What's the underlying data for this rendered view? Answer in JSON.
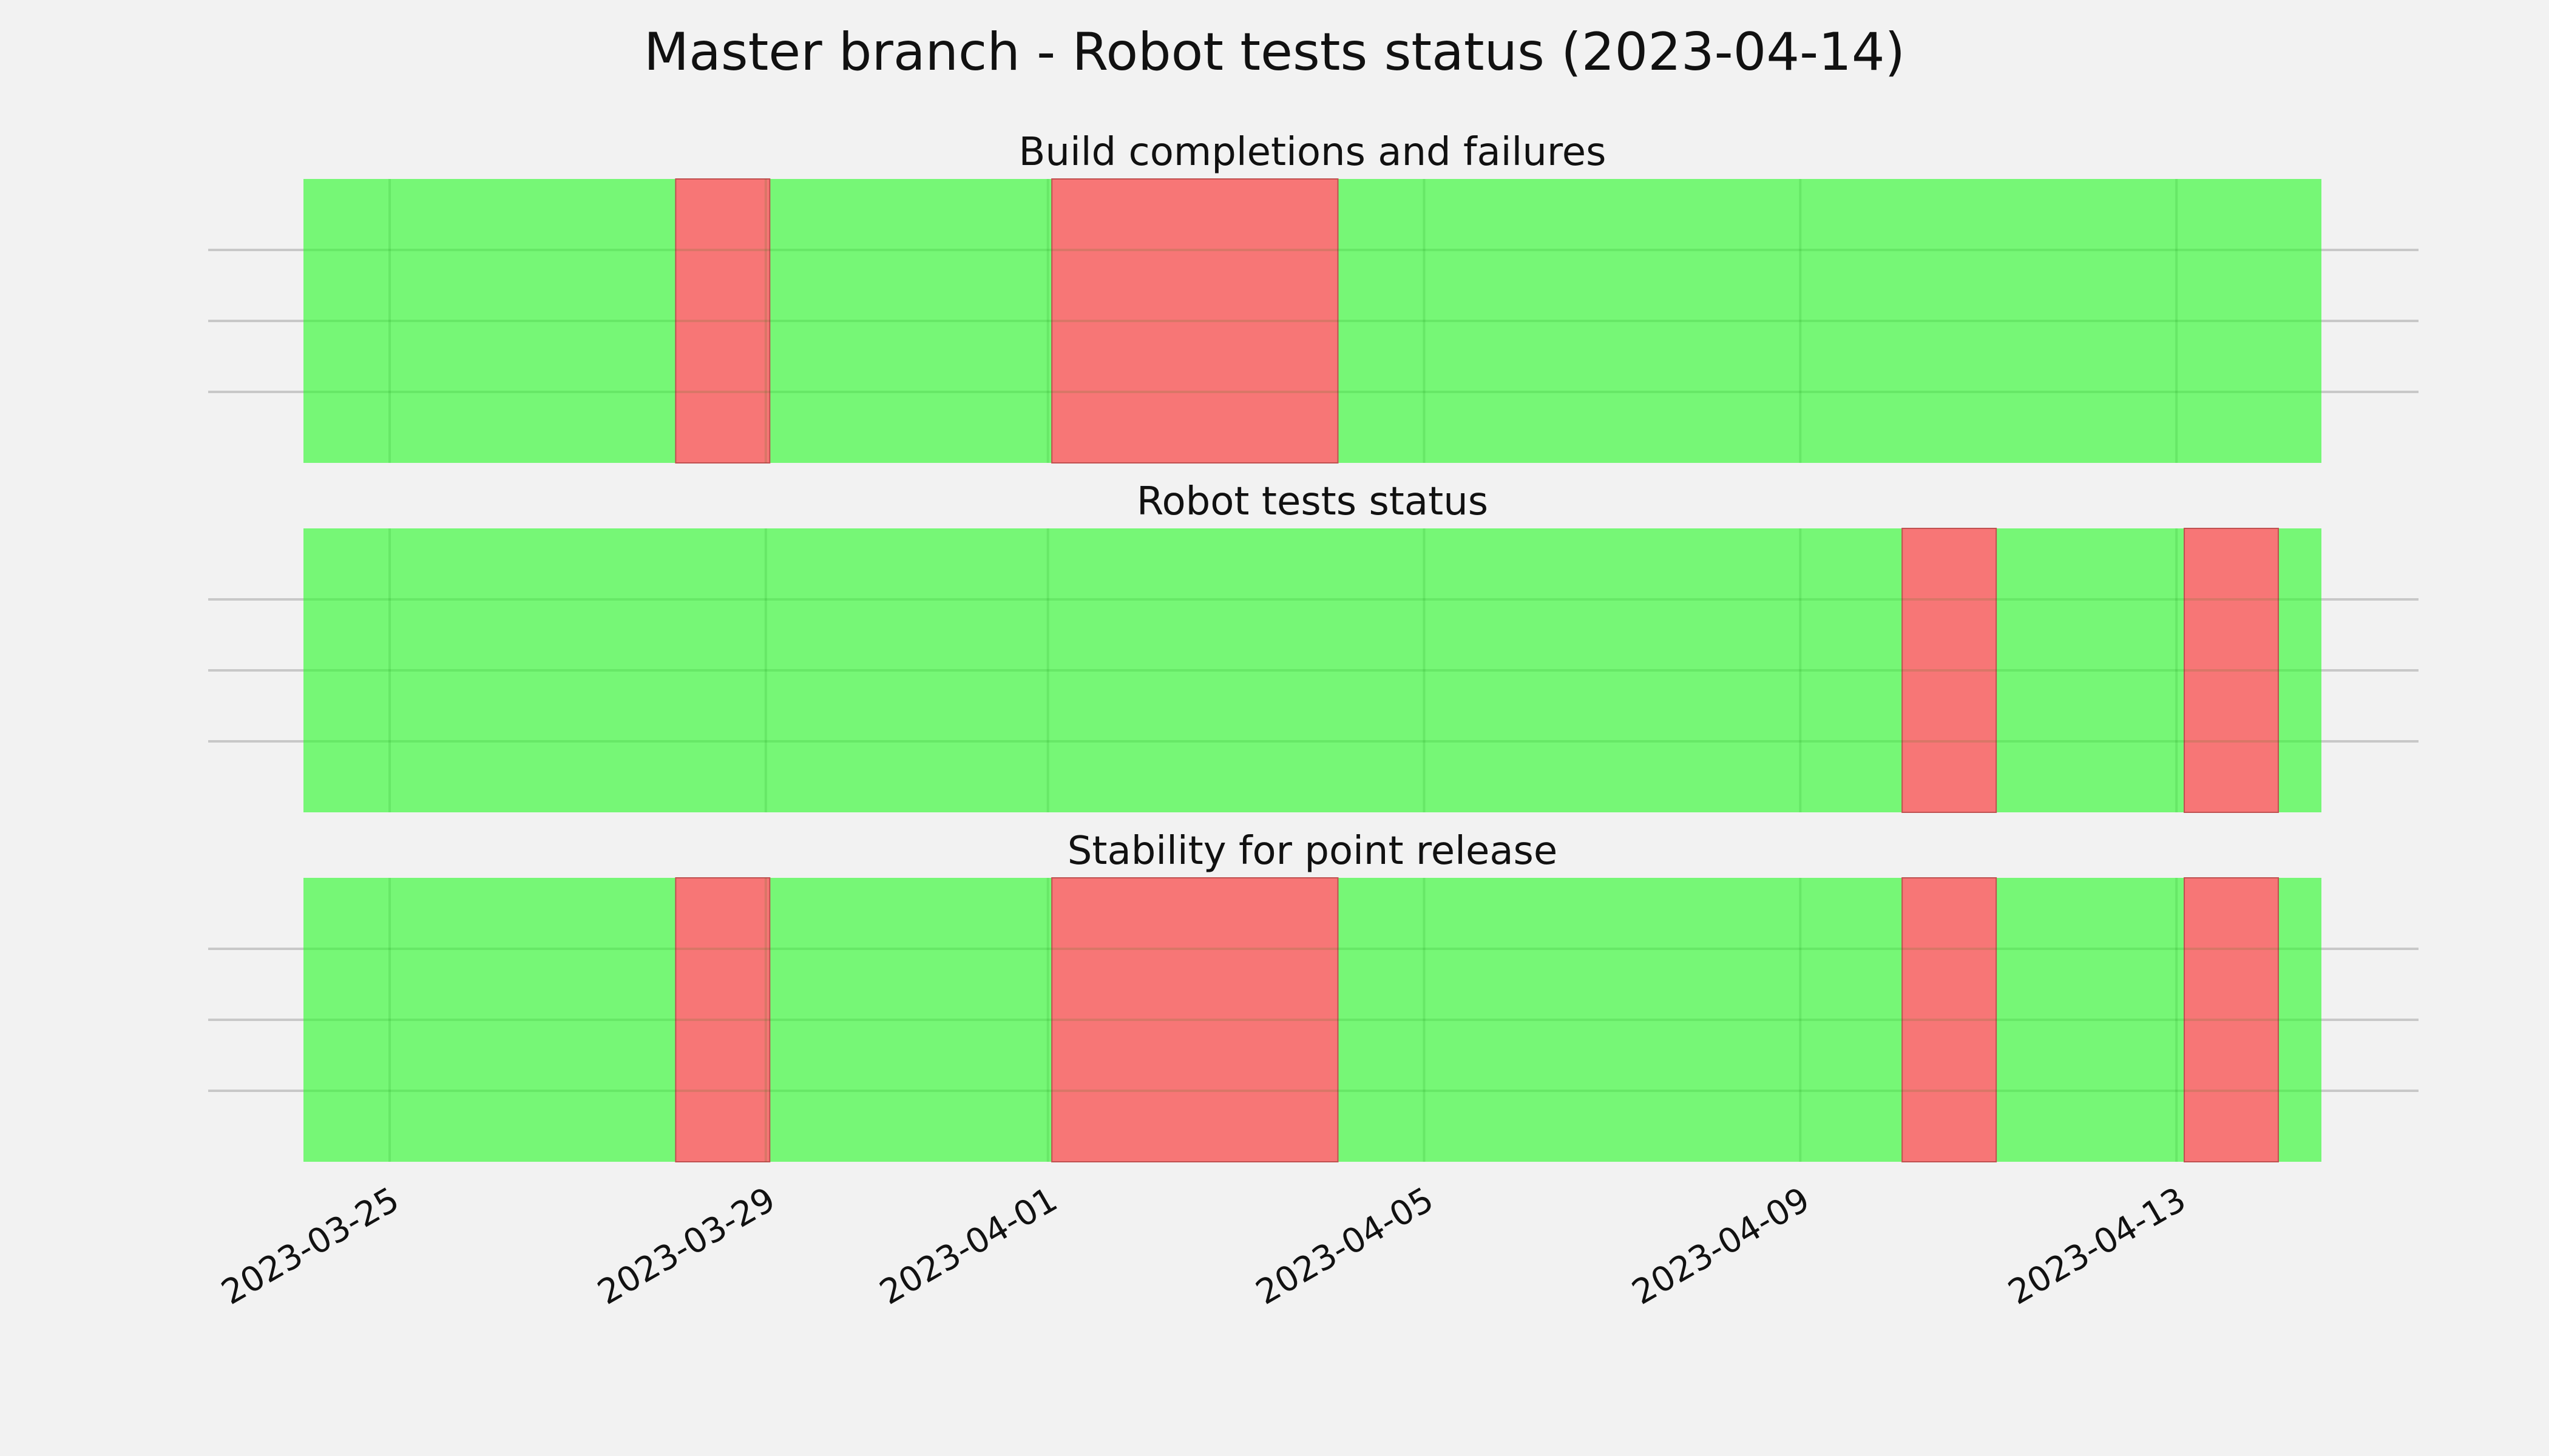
{
  "chart_data": {
    "type": "timeline",
    "title": "Master branch - Robot tests status (2023-04-14)",
    "x_tick_labels": [
      "2023-03-25",
      "2023-03-29",
      "2023-04-01",
      "2023-04-05",
      "2023-04-09",
      "2023-04-13"
    ],
    "x_tick_dates": [
      "2023-03-25",
      "2023-03-29",
      "2023-04-01",
      "2023-04-05",
      "2023-04-09",
      "2023-04-13"
    ],
    "xlim": [
      "2023-03-24T02:00",
      "2023-04-14T13:00"
    ],
    "grid": true,
    "colors": {
      "success": "#76f776",
      "failure": "#f77676",
      "background": "#f2f2f2",
      "grid": "#c8c8c8"
    },
    "panels": [
      {
        "title": "Build completions and failures",
        "failures": [
          {
            "start": "2023-03-28T01:00",
            "end": "2023-03-29T01:00"
          },
          {
            "start": "2023-04-01T01:00",
            "end": "2023-04-04T02:00"
          }
        ]
      },
      {
        "title": "Robot tests status",
        "failures": [
          {
            "start": "2023-04-10T02:00",
            "end": "2023-04-11T02:00"
          },
          {
            "start": "2023-04-13T02:00",
            "end": "2023-04-14T02:00"
          }
        ]
      },
      {
        "title": "Stability for point release",
        "failures": [
          {
            "start": "2023-03-28T01:00",
            "end": "2023-03-29T01:00"
          },
          {
            "start": "2023-04-01T01:00",
            "end": "2023-04-04T02:00"
          },
          {
            "start": "2023-04-10T02:00",
            "end": "2023-04-11T02:00"
          },
          {
            "start": "2023-04-13T02:00",
            "end": "2023-04-14T02:00"
          }
        ]
      }
    ]
  }
}
